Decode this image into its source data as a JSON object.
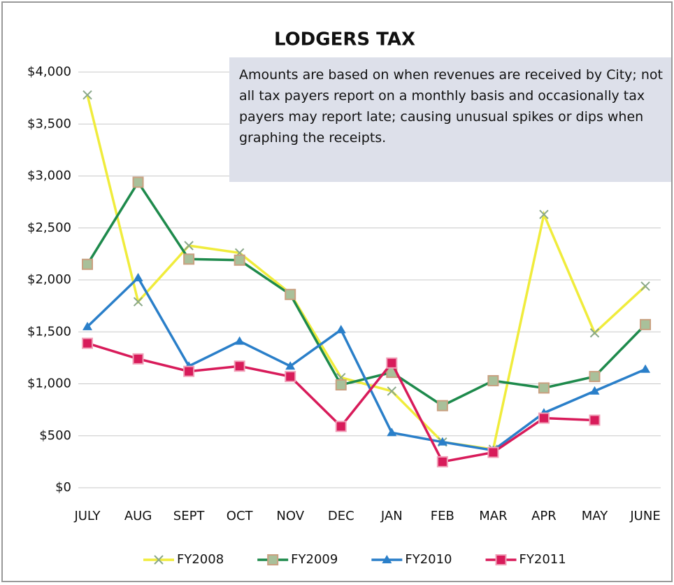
{
  "chart_data": {
    "type": "line",
    "title": "LODGERS TAX",
    "annotation": "Amounts are based on when revenues are received by City; not all tax payers report on a monthly basis and occasionally tax payers may report late; causing unusual spikes or dips when graphing the receipts.",
    "categories": [
      "JULY",
      "AUG",
      "SEPT",
      "OCT",
      "NOV",
      "DEC",
      "JAN",
      "FEB",
      "MAR",
      "APR",
      "MAY",
      "JUNE"
    ],
    "series": [
      {
        "name": "FY2008",
        "color": "#f0ec3c",
        "marker": "x",
        "values": [
          3780,
          1790,
          2330,
          2260,
          1870,
          1060,
          930,
          440,
          370,
          2630,
          1490,
          1940
        ]
      },
      {
        "name": "FY2009",
        "color": "#1e8a4c",
        "marker": "square",
        "values": [
          2150,
          2940,
          2200,
          2190,
          1860,
          990,
          1110,
          790,
          1030,
          960,
          1070,
          1570
        ]
      },
      {
        "name": "FY2010",
        "color": "#2a7fc9",
        "marker": "triangle",
        "values": [
          1550,
          2020,
          1170,
          1410,
          1170,
          1520,
          530,
          440,
          360,
          720,
          930,
          1140
        ]
      },
      {
        "name": "FY2011",
        "color": "#d81b5a",
        "marker": "square",
        "values": [
          1390,
          1240,
          1120,
          1170,
          1070,
          590,
          1200,
          250,
          340,
          670,
          650,
          null
        ]
      }
    ],
    "ylim": [
      0,
      4000
    ],
    "yticks": [
      {
        "value": 0,
        "label": "$0"
      },
      {
        "value": 500,
        "label": "$500"
      },
      {
        "value": 1000,
        "label": "$1,000"
      },
      {
        "value": 1500,
        "label": "$1,500"
      },
      {
        "value": 2000,
        "label": "$2,000"
      },
      {
        "value": 2500,
        "label": "$2,500"
      },
      {
        "value": 3000,
        "label": "$3,000"
      },
      {
        "value": 3500,
        "label": "$3,500"
      },
      {
        "value": 4000,
        "label": "$4,000"
      }
    ],
    "grid": true,
    "legend": "bottom"
  }
}
